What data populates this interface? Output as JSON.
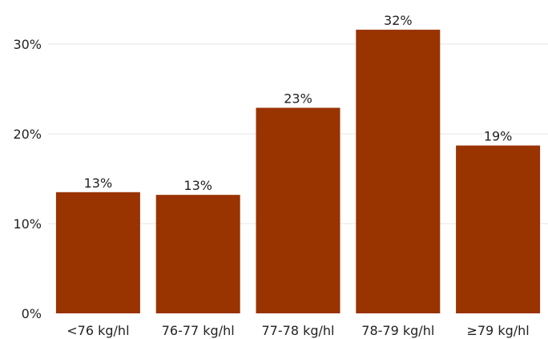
{
  "chart_data": {
    "type": "bar",
    "categories": [
      "<76 kg/hl",
      "76-77 kg/hl",
      "77-78 kg/hl",
      "78-79 kg/hl",
      "≥79 kg/hl"
    ],
    "values": [
      13.5,
      13.2,
      22.9,
      31.6,
      18.7
    ],
    "data_labels": [
      "13%",
      "13%",
      "23%",
      "32%",
      "19%"
    ],
    "yticks": [
      0,
      10,
      20,
      30
    ],
    "ytick_labels": [
      "0%",
      "10%",
      "20%",
      "30%"
    ],
    "ylim": [
      0,
      33
    ],
    "grid": true,
    "bar_color": "#993300",
    "title": "",
    "xlabel": "",
    "ylabel": ""
  }
}
